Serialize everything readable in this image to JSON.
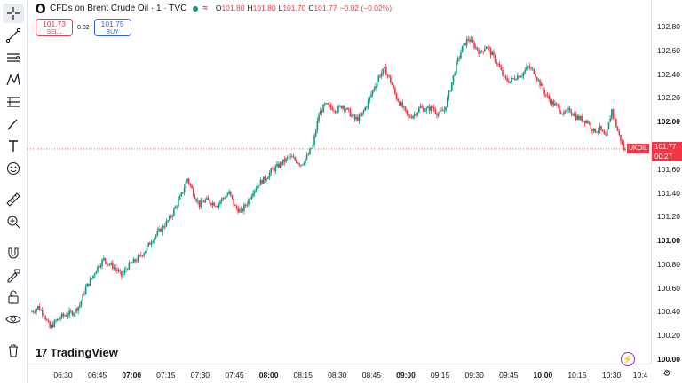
{
  "legend": {
    "symbol_title": "CFDs on Brent Crude Oil · 1 · TVC",
    "ohlc": [
      {
        "key": "O",
        "value": "101.80"
      },
      {
        "key": "H",
        "value": "101.80"
      },
      {
        "key": "L",
        "value": "101.70"
      },
      {
        "key": "C",
        "value": "101.77"
      },
      {
        "key": "",
        "value": "−0.02 (−0.02%)"
      }
    ],
    "market_status_color": "#089981"
  },
  "trade": {
    "sell_price": "101.73",
    "sell_label": "SELL",
    "spread": "0.02",
    "buy_price": "101.75",
    "buy_label": "BUY"
  },
  "price_axis": {
    "labels": [
      "102.80",
      "102.60",
      "102.40",
      "102.20",
      "102.00",
      "101.80",
      "101.60",
      "101.40",
      "101.20",
      "101.00",
      "100.80",
      "100.60",
      "100.40",
      "100.20",
      "100.00"
    ],
    "bold_labels": [
      "102.00",
      "101.00",
      "100.00"
    ]
  },
  "current_price": {
    "symbol": "UKOIL",
    "price": "101.77",
    "countdown": "00:27",
    "color": "#f23645"
  },
  "time_axis": {
    "labels": [
      "06:30",
      "06:45",
      "07:00",
      "07:15",
      "07:30",
      "07:45",
      "08:00",
      "08:15",
      "08:30",
      "08:45",
      "09:00",
      "09:15",
      "09:30",
      "09:45",
      "10:00",
      "10:15",
      "10:30",
      "10:4"
    ],
    "bold_labels": [
      "07:00",
      "08:00",
      "09:00",
      "10:00"
    ]
  },
  "watermark": {
    "logo": "17",
    "text": "TradingView"
  },
  "toolbar": {
    "tools": [
      "crosshair-icon",
      "trend-line-icon",
      "horizontal-lines-icon",
      "pattern-icon",
      "fib-icon",
      "brush-icon",
      "text-icon",
      "emoji-icon",
      "ruler-icon",
      "zoom-in-icon",
      "magnet-icon",
      "lock-drawing-icon",
      "lock-icon",
      "eye-icon",
      "trash-icon"
    ]
  },
  "colors": {
    "up": "#089981",
    "down": "#f23645"
  },
  "chart_data": {
    "type": "candlestick",
    "x_start": "06:22",
    "ylim": [
      99.98,
      102.86
    ],
    "close_path": [
      [
        0,
        100.4
      ],
      [
        4,
        100.44
      ],
      [
        8,
        100.38
      ],
      [
        12,
        100.26
      ],
      [
        16,
        100.32
      ],
      [
        20,
        100.36
      ],
      [
        24,
        100.38
      ],
      [
        28,
        100.4
      ],
      [
        32,
        100.46
      ],
      [
        36,
        100.6
      ],
      [
        40,
        100.68
      ],
      [
        44,
        100.78
      ],
      [
        48,
        100.84
      ],
      [
        52,
        100.8
      ],
      [
        56,
        100.76
      ],
      [
        60,
        100.7
      ],
      [
        64,
        100.78
      ],
      [
        68,
        100.82
      ],
      [
        72,
        100.86
      ],
      [
        76,
        100.92
      ],
      [
        80,
        101.0
      ],
      [
        84,
        101.06
      ],
      [
        88,
        101.12
      ],
      [
        92,
        101.18
      ],
      [
        96,
        101.28
      ],
      [
        100,
        101.38
      ],
      [
        104,
        101.52
      ],
      [
        108,
        101.4
      ],
      [
        112,
        101.3
      ],
      [
        116,
        101.34
      ],
      [
        120,
        101.32
      ],
      [
        124,
        101.3
      ],
      [
        128,
        101.36
      ],
      [
        132,
        101.4
      ],
      [
        136,
        101.28
      ],
      [
        140,
        101.24
      ],
      [
        144,
        101.32
      ],
      [
        148,
        101.42
      ],
      [
        152,
        101.48
      ],
      [
        156,
        101.52
      ],
      [
        160,
        101.58
      ],
      [
        164,
        101.62
      ],
      [
        168,
        101.66
      ],
      [
        172,
        101.7
      ],
      [
        176,
        101.68
      ],
      [
        180,
        101.64
      ],
      [
        184,
        101.7
      ],
      [
        188,
        101.8
      ],
      [
        192,
        102.06
      ],
      [
        196,
        102.14
      ],
      [
        200,
        102.12
      ],
      [
        204,
        102.1
      ],
      [
        208,
        102.14
      ],
      [
        212,
        102.08
      ],
      [
        216,
        102.02
      ],
      [
        220,
        102.04
      ],
      [
        224,
        102.14
      ],
      [
        228,
        102.26
      ],
      [
        232,
        102.38
      ],
      [
        236,
        102.44
      ],
      [
        240,
        102.34
      ],
      [
        244,
        102.2
      ],
      [
        248,
        102.12
      ],
      [
        252,
        102.04
      ],
      [
        256,
        102.06
      ],
      [
        260,
        102.12
      ],
      [
        264,
        102.1
      ],
      [
        268,
        102.12
      ],
      [
        272,
        102.06
      ],
      [
        276,
        102.1
      ],
      [
        280,
        102.28
      ],
      [
        284,
        102.48
      ],
      [
        288,
        102.62
      ],
      [
        292,
        102.7
      ],
      [
        296,
        102.64
      ],
      [
        300,
        102.58
      ],
      [
        304,
        102.64
      ],
      [
        308,
        102.56
      ],
      [
        312,
        102.48
      ],
      [
        316,
        102.36
      ],
      [
        320,
        102.34
      ],
      [
        324,
        102.38
      ],
      [
        328,
        102.4
      ],
      [
        332,
        102.46
      ],
      [
        336,
        102.42
      ],
      [
        340,
        102.32
      ],
      [
        344,
        102.22
      ],
      [
        348,
        102.16
      ],
      [
        352,
        102.12
      ],
      [
        356,
        102.06
      ],
      [
        360,
        102.1
      ],
      [
        364,
        102.04
      ],
      [
        368,
        102.02
      ],
      [
        372,
        102.0
      ],
      [
        376,
        101.92
      ],
      [
        380,
        101.94
      ],
      [
        384,
        101.86
      ],
      [
        388,
        102.1
      ],
      [
        392,
        101.92
      ],
      [
        396,
        101.77
      ]
    ]
  }
}
